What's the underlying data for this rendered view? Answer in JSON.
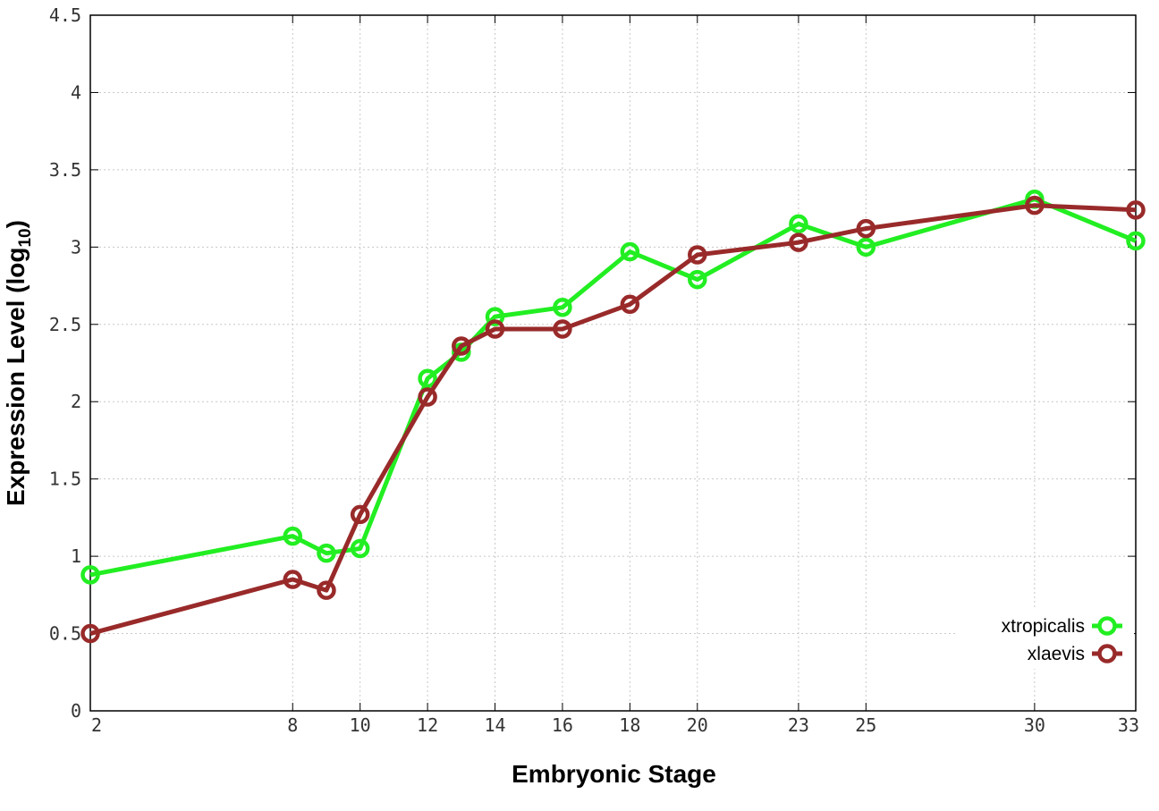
{
  "chart_data": {
    "type": "line",
    "xlabel": "Embryonic Stage",
    "ylabel_main": "Expression Level (log",
    "ylabel_sub": "10",
    "ylabel_close": ")",
    "x_ticks": [
      2,
      8,
      10,
      12,
      14,
      16,
      18,
      20,
      23,
      25,
      30,
      33
    ],
    "y_ticks": [
      "0",
      "0.5",
      "1",
      "1.5",
      "2",
      "2.5",
      "3",
      "3.5",
      "4",
      "4.5"
    ],
    "ylim": [
      0,
      4.5
    ],
    "grid": true,
    "legend_position": "bottom-right",
    "series": [
      {
        "name": "xtropicalis",
        "color": "#22ee22",
        "points": [
          {
            "x": 2,
            "y": 0.88
          },
          {
            "x": 8,
            "y": 1.13
          },
          {
            "x": 9,
            "y": 1.02
          },
          {
            "x": 10,
            "y": 1.05
          },
          {
            "x": 12,
            "y": 2.15
          },
          {
            "x": 13,
            "y": 2.32
          },
          {
            "x": 14,
            "y": 2.55
          },
          {
            "x": 16,
            "y": 2.61
          },
          {
            "x": 18,
            "y": 2.97
          },
          {
            "x": 20,
            "y": 2.79
          },
          {
            "x": 23,
            "y": 3.15
          },
          {
            "x": 25,
            "y": 3.0
          },
          {
            "x": 30,
            "y": 3.31
          },
          {
            "x": 33,
            "y": 3.04
          }
        ]
      },
      {
        "name": "xlaevis",
        "color": "#992a2a",
        "points": [
          {
            "x": 2,
            "y": 0.5
          },
          {
            "x": 8,
            "y": 0.85
          },
          {
            "x": 9,
            "y": 0.78
          },
          {
            "x": 10,
            "y": 1.27
          },
          {
            "x": 12,
            "y": 2.03
          },
          {
            "x": 13,
            "y": 2.36
          },
          {
            "x": 14,
            "y": 2.47
          },
          {
            "x": 16,
            "y": 2.47
          },
          {
            "x": 18,
            "y": 2.63
          },
          {
            "x": 20,
            "y": 2.95
          },
          {
            "x": 23,
            "y": 3.03
          },
          {
            "x": 25,
            "y": 3.12
          },
          {
            "x": 30,
            "y": 3.27
          },
          {
            "x": 33,
            "y": 3.24
          }
        ]
      }
    ]
  }
}
